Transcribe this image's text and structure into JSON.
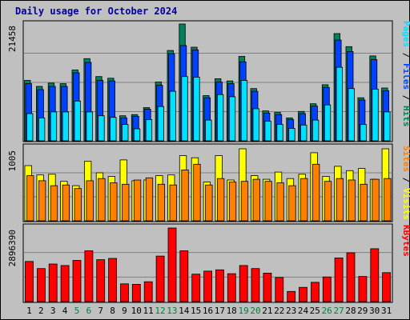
{
  "title": "Daily usage for October 2024",
  "colors": {
    "background": "#c0c0c0",
    "hits": "#00805c",
    "files": "#0040ff",
    "pages": "#00e0ff",
    "visits": "#ffff00",
    "sites": "#ff8000",
    "kbytes": "#ff0000",
    "weekday_label": "#000000",
    "weekend_label": "#008040"
  },
  "chart_data": [
    {
      "type": "bar",
      "panel": "hits-files-pages",
      "categories": [
        "1",
        "2",
        "3",
        "4",
        "5",
        "6",
        "7",
        "8",
        "9",
        "10",
        "11",
        "12",
        "13",
        "14",
        "15",
        "16",
        "17",
        "18",
        "19",
        "20",
        "21",
        "22",
        "23",
        "24",
        "25",
        "26",
        "27",
        "28",
        "29",
        "30",
        "31"
      ],
      "weekend_days": [
        "5",
        "6",
        "12",
        "13",
        "19",
        "20",
        "26",
        "27"
      ],
      "ytick": "21458",
      "ylim": [
        0,
        21458
      ],
      "legend": [
        {
          "label": "Hits",
          "key": "hits"
        },
        {
          "label": "Files",
          "key": "files"
        },
        {
          "label": "Pages",
          "key": "pages"
        }
      ],
      "series": [
        {
          "name": "Hits",
          "key": "hits",
          "values": [
            11100,
            10000,
            10600,
            10500,
            13000,
            15100,
            11800,
            11500,
            4600,
            4800,
            6100,
            10800,
            16600,
            21458,
            17200,
            8300,
            11400,
            11000,
            15500,
            9600,
            5500,
            5200,
            4200,
            5400,
            6800,
            10300,
            19700,
            17300,
            7900,
            15600,
            9700
          ]
        },
        {
          "name": "Files",
          "key": "files",
          "values": [
            10500,
            9400,
            10000,
            10000,
            12500,
            14400,
            11100,
            11000,
            4200,
            4500,
            5800,
            10200,
            16000,
            17500,
            16700,
            7900,
            10800,
            10500,
            14500,
            9100,
            5100,
            4800,
            3900,
            5000,
            6400,
            9800,
            18500,
            16400,
            7500,
            14900,
            9200
          ]
        },
        {
          "name": "Pages",
          "key": "pages",
          "values": [
            5000,
            4200,
            5300,
            5300,
            7300,
            5300,
            4600,
            4300,
            3000,
            2200,
            3900,
            6300,
            9100,
            11800,
            11700,
            3800,
            8500,
            8100,
            11100,
            5900,
            3600,
            3000,
            2300,
            2900,
            3800,
            6600,
            13500,
            9600,
            3000,
            9500,
            5300
          ]
        }
      ]
    },
    {
      "type": "bar",
      "panel": "visits-sites",
      "categories": [
        "1",
        "2",
        "3",
        "4",
        "5",
        "6",
        "7",
        "8",
        "9",
        "10",
        "11",
        "12",
        "13",
        "14",
        "15",
        "16",
        "17",
        "18",
        "19",
        "20",
        "21",
        "22",
        "23",
        "24",
        "25",
        "26",
        "27",
        "28",
        "29",
        "30",
        "31"
      ],
      "ytick": "1005",
      "ylim": [
        0,
        1005
      ],
      "legend": [
        {
          "label": "Visits",
          "key": "visits"
        },
        {
          "label": "Sites",
          "key": "sites"
        }
      ],
      "series": [
        {
          "name": "Visits",
          "key": "visits",
          "values": [
            770,
            640,
            650,
            550,
            490,
            830,
            670,
            620,
            850,
            560,
            570,
            630,
            640,
            910,
            880,
            540,
            910,
            570,
            1005,
            630,
            580,
            680,
            590,
            650,
            950,
            620,
            760,
            700,
            730,
            580,
            1005
          ]
        },
        {
          "name": "Sites",
          "key": "sites",
          "values": [
            630,
            560,
            490,
            500,
            450,
            560,
            590,
            530,
            510,
            570,
            600,
            510,
            500,
            710,
            790,
            500,
            590,
            540,
            550,
            580,
            550,
            530,
            490,
            590,
            790,
            550,
            590,
            570,
            510,
            580,
            590
          ]
        }
      ]
    },
    {
      "type": "bar",
      "panel": "kbytes",
      "categories": [
        "1",
        "2",
        "3",
        "4",
        "5",
        "6",
        "7",
        "8",
        "9",
        "10",
        "11",
        "12",
        "13",
        "14",
        "15",
        "16",
        "17",
        "18",
        "19",
        "20",
        "21",
        "22",
        "23",
        "24",
        "25",
        "26",
        "27",
        "28",
        "29",
        "30",
        "31"
      ],
      "ytick": "2896390",
      "ylim": [
        0,
        2896390
      ],
      "legend": [
        {
          "label": "KBytes",
          "key": "kbytes"
        }
      ],
      "series": [
        {
          "name": "KBytes",
          "key": "kbytes",
          "values": [
            1580000,
            1300000,
            1480000,
            1420000,
            1620000,
            2000000,
            1650000,
            1700000,
            700000,
            680000,
            780000,
            1790000,
            2896390,
            2000000,
            1080000,
            1200000,
            1250000,
            1100000,
            1420000,
            1300000,
            1120000,
            950000,
            400000,
            560000,
            760000,
            970000,
            1720000,
            1920000,
            990000,
            2080000,
            1140000
          ]
        }
      ]
    }
  ]
}
